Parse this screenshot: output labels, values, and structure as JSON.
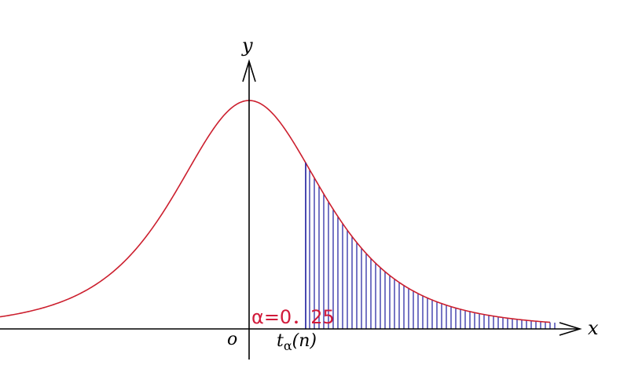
{
  "figure": {
    "axis_x_label": "x",
    "axis_y_label": "y",
    "origin_label": "o",
    "quantile_t": "t",
    "quantile_sub": "α",
    "quantile_arg": "(n)",
    "alpha_text": "α=0．25"
  },
  "colors": {
    "curve": "#cc1f2e",
    "hatch": "#1a1a9c",
    "axes": "#000000",
    "alpha_label": "#d11a3a"
  },
  "chart_data": {
    "type": "area",
    "curve": "t-distribution density",
    "shaded_region": "right tail beyond t_α(n)",
    "alpha": 0.25
  }
}
